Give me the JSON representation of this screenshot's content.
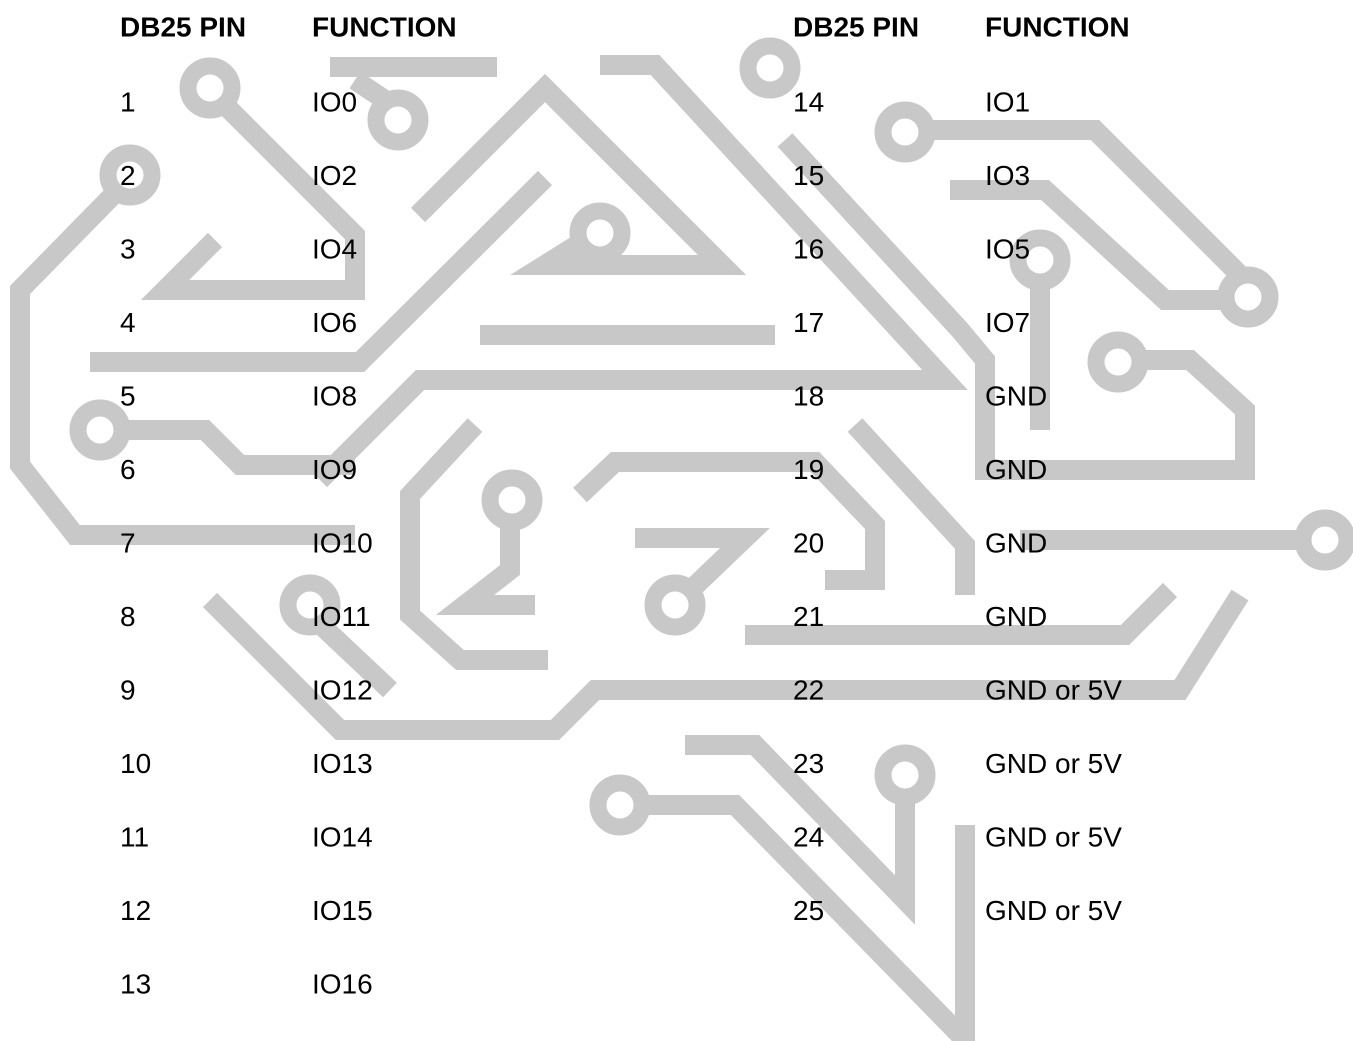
{
  "tables": [
    {
      "header": [
        "DB25 PIN",
        "FUNCTION"
      ],
      "rows": [
        [
          "1",
          "IO0"
        ],
        [
          "2",
          "IO2"
        ],
        [
          "3",
          "IO4"
        ],
        [
          "4",
          "IO6"
        ],
        [
          "5",
          "IO8"
        ],
        [
          "6",
          "IO9"
        ],
        [
          "7",
          "IO10"
        ],
        [
          "8",
          "IO11"
        ],
        [
          "9",
          "IO12"
        ],
        [
          "10",
          "IO13"
        ],
        [
          "11",
          "IO14"
        ],
        [
          "12",
          "IO15"
        ],
        [
          "13",
          "IO16"
        ]
      ]
    },
    {
      "header": [
        "DB25 PIN",
        "FUNCTION"
      ],
      "rows": [
        [
          "14",
          "IO1"
        ],
        [
          "15",
          "IO3"
        ],
        [
          "16",
          "IO5"
        ],
        [
          "17",
          "IO7"
        ],
        [
          "18",
          "GND"
        ],
        [
          "19",
          "GND"
        ],
        [
          "20",
          "GND"
        ],
        [
          "21",
          "GND"
        ],
        [
          "22",
          "GND or 5V"
        ],
        [
          "23",
          "GND or 5V"
        ],
        [
          "24",
          "GND or 5V"
        ],
        [
          "25",
          "GND or 5V"
        ]
      ]
    }
  ]
}
